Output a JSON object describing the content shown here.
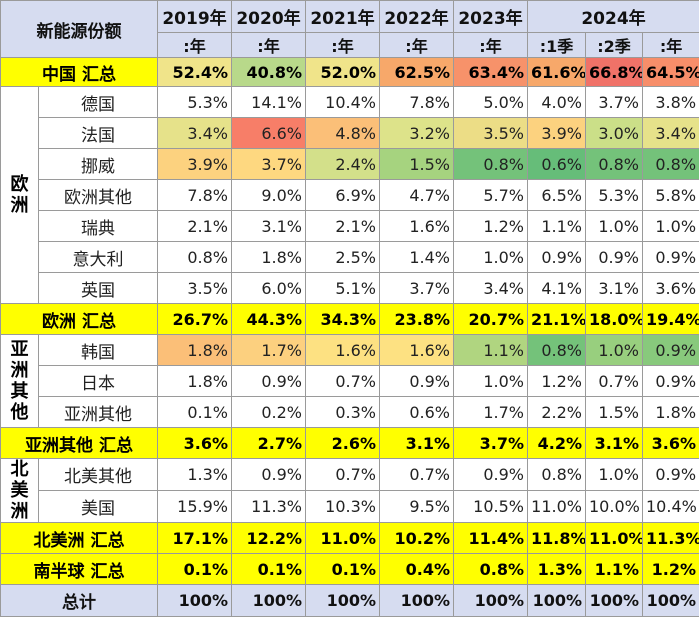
{
  "chart_data": {
    "type": "table",
    "title": "新能源份额",
    "columns": [
      {
        "year": "2019年",
        "period": ":年"
      },
      {
        "year": "2020年",
        "period": ":年"
      },
      {
        "year": "2021年",
        "period": ":年"
      },
      {
        "year": "2022年",
        "period": ":年"
      },
      {
        "year": "2023年",
        "period": ":年"
      },
      {
        "year": "2024年",
        "period": ":1季"
      },
      {
        "year": "",
        "period": ":2季"
      },
      {
        "year": "",
        "period": ":年"
      }
    ],
    "year_2024_label": "2024年",
    "rows": [
      {
        "kind": "total",
        "label": "中国 汇总",
        "values": [
          "52.4%",
          "40.8%",
          "52.0%",
          "62.5%",
          "63.4%",
          "61.6%",
          "66.8%",
          "64.5%"
        ],
        "colors": [
          "#f0e48a",
          "#b8d98a",
          "#f0e48a",
          "#f7a86a",
          "#f7926a",
          "#f7a86a",
          "#f07268",
          "#f78e6a"
        ]
      },
      {
        "kind": "country",
        "region": "europe",
        "label": "德国",
        "values": [
          "5.3%",
          "14.1%",
          "10.4%",
          "7.8%",
          "5.0%",
          "4.0%",
          "3.7%",
          "3.8%"
        ],
        "colors": [
          "#ffffff",
          "#ffffff",
          "#ffffff",
          "#ffffff",
          "#ffffff",
          "#ffffff",
          "#ffffff",
          "#ffffff"
        ]
      },
      {
        "kind": "country",
        "region": "europe",
        "label": "法国",
        "values": [
          "3.4%",
          "6.6%",
          "4.8%",
          "3.2%",
          "3.5%",
          "3.9%",
          "3.0%",
          "3.4%"
        ],
        "colors": [
          "#e6e28a",
          "#f77e68",
          "#fbbf78",
          "#dde38a",
          "#ecdd86",
          "#fcd27f",
          "#cbdf88",
          "#e6e28a"
        ]
      },
      {
        "kind": "country",
        "region": "europe",
        "label": "挪威",
        "values": [
          "3.9%",
          "3.7%",
          "2.4%",
          "1.5%",
          "0.8%",
          "0.6%",
          "0.8%",
          "0.8%"
        ],
        "colors": [
          "#fcd27f",
          "#fed880",
          "#d3e08a",
          "#a6d37f",
          "#74c27a",
          "#66bd79",
          "#74c27a",
          "#74c27a"
        ]
      },
      {
        "kind": "country",
        "region": "europe",
        "label": "欧洲其他",
        "values": [
          "7.8%",
          "9.0%",
          "6.9%",
          "4.7%",
          "5.7%",
          "6.5%",
          "5.3%",
          "5.8%"
        ],
        "colors": [
          "#ffffff",
          "#ffffff",
          "#ffffff",
          "#ffffff",
          "#ffffff",
          "#ffffff",
          "#ffffff",
          "#ffffff"
        ]
      },
      {
        "kind": "country",
        "region": "europe",
        "label": "瑞典",
        "values": [
          "2.1%",
          "3.1%",
          "2.1%",
          "1.6%",
          "1.2%",
          "1.1%",
          "1.0%",
          "1.0%"
        ],
        "colors": [
          "#ffffff",
          "#ffffff",
          "#ffffff",
          "#ffffff",
          "#ffffff",
          "#ffffff",
          "#ffffff",
          "#ffffff"
        ]
      },
      {
        "kind": "country",
        "region": "europe",
        "label": "意大利",
        "values": [
          "0.8%",
          "1.8%",
          "2.5%",
          "1.4%",
          "1.0%",
          "0.9%",
          "0.9%",
          "0.9%"
        ],
        "colors": [
          "#ffffff",
          "#ffffff",
          "#ffffff",
          "#ffffff",
          "#ffffff",
          "#ffffff",
          "#ffffff",
          "#ffffff"
        ]
      },
      {
        "kind": "country",
        "region": "europe",
        "label": "英国",
        "values": [
          "3.5%",
          "6.0%",
          "5.1%",
          "3.7%",
          "3.4%",
          "4.1%",
          "3.1%",
          "3.6%"
        ],
        "colors": [
          "#ffffff",
          "#ffffff",
          "#ffffff",
          "#ffffff",
          "#ffffff",
          "#ffffff",
          "#ffffff",
          "#ffffff"
        ]
      },
      {
        "kind": "total",
        "label": "欧洲 汇总",
        "values": [
          "26.7%",
          "44.3%",
          "34.3%",
          "23.8%",
          "20.7%",
          "21.1%",
          "18.0%",
          "19.4%"
        ],
        "colors": [
          "#ffff00",
          "#ffff00",
          "#ffff00",
          "#ffff00",
          "#ffff00",
          "#ffff00",
          "#ffff00",
          "#ffff00"
        ]
      },
      {
        "kind": "country",
        "region": "asia",
        "label": "韩国",
        "values": [
          "1.8%",
          "1.7%",
          "1.6%",
          "1.6%",
          "1.1%",
          "0.8%",
          "1.0%",
          "0.9%"
        ],
        "colors": [
          "#fbbf78",
          "#fcd07f",
          "#fde182",
          "#fde182",
          "#b0d580",
          "#74c27a",
          "#98cf7e",
          "#88c97c"
        ]
      },
      {
        "kind": "country",
        "region": "asia",
        "label": "日本",
        "values": [
          "1.8%",
          "0.9%",
          "0.7%",
          "0.9%",
          "1.0%",
          "1.2%",
          "0.7%",
          "0.9%"
        ],
        "colors": [
          "#ffffff",
          "#ffffff",
          "#ffffff",
          "#ffffff",
          "#ffffff",
          "#ffffff",
          "#ffffff",
          "#ffffff"
        ]
      },
      {
        "kind": "country",
        "region": "asia",
        "label": "亚洲其他",
        "values": [
          "0.1%",
          "0.2%",
          "0.3%",
          "0.6%",
          "1.7%",
          "2.2%",
          "1.5%",
          "1.8%"
        ],
        "colors": [
          "#ffffff",
          "#ffffff",
          "#ffffff",
          "#ffffff",
          "#ffffff",
          "#ffffff",
          "#ffffff",
          "#ffffff"
        ]
      },
      {
        "kind": "total",
        "label": "亚洲其他 汇总",
        "values": [
          "3.6%",
          "2.7%",
          "2.6%",
          "3.1%",
          "3.7%",
          "4.2%",
          "3.1%",
          "3.6%"
        ],
        "colors": [
          "#ffff00",
          "#ffff00",
          "#ffff00",
          "#ffff00",
          "#ffff00",
          "#ffff00",
          "#ffff00",
          "#ffff00"
        ]
      },
      {
        "kind": "country",
        "region": "na",
        "label": "北美其他",
        "values": [
          "1.3%",
          "0.9%",
          "0.7%",
          "0.7%",
          "0.9%",
          "0.8%",
          "1.0%",
          "0.9%"
        ],
        "colors": [
          "#ffffff",
          "#ffffff",
          "#ffffff",
          "#ffffff",
          "#ffffff",
          "#ffffff",
          "#ffffff",
          "#ffffff"
        ]
      },
      {
        "kind": "country",
        "region": "na",
        "label": "美国",
        "values": [
          "15.9%",
          "11.3%",
          "10.3%",
          "9.5%",
          "10.5%",
          "11.0%",
          "10.0%",
          "10.4%"
        ],
        "colors": [
          "#ffffff",
          "#ffffff",
          "#ffffff",
          "#ffffff",
          "#ffffff",
          "#ffffff",
          "#ffffff",
          "#ffffff"
        ]
      },
      {
        "kind": "total",
        "label": "北美洲 汇总",
        "values": [
          "17.1%",
          "12.2%",
          "11.0%",
          "10.2%",
          "11.4%",
          "11.8%",
          "11.0%",
          "11.3%"
        ],
        "colors": [
          "#ffff00",
          "#ffff00",
          "#ffff00",
          "#ffff00",
          "#ffff00",
          "#ffff00",
          "#ffff00",
          "#ffff00"
        ]
      },
      {
        "kind": "total",
        "label": "南半球 汇总",
        "values": [
          "0.1%",
          "0.1%",
          "0.1%",
          "0.4%",
          "0.8%",
          "1.3%",
          "1.1%",
          "1.2%"
        ],
        "colors": [
          "#ffff00",
          "#ffff00",
          "#ffff00",
          "#ffff00",
          "#ffff00",
          "#ffff00",
          "#ffff00",
          "#ffff00"
        ]
      },
      {
        "kind": "sum",
        "label": "总计",
        "values": [
          "100%",
          "100%",
          "100%",
          "100%",
          "100%",
          "100%",
          "100%",
          "100%"
        ],
        "colors": [
          "#d6dcf0",
          "#d6dcf0",
          "#d6dcf0",
          "#d6dcf0",
          "#d6dcf0",
          "#d6dcf0",
          "#d6dcf0",
          "#d6dcf0"
        ]
      }
    ],
    "regions": {
      "europe": {
        "label": "欧洲",
        "chars": [
          "欧",
          "洲"
        ]
      },
      "asia": {
        "label": "亚洲其他",
        "chars": [
          "亚",
          "洲",
          "其",
          "他"
        ]
      },
      "na": {
        "label": "北美洲",
        "chars": [
          "北",
          "美",
          "洲"
        ]
      }
    }
  }
}
